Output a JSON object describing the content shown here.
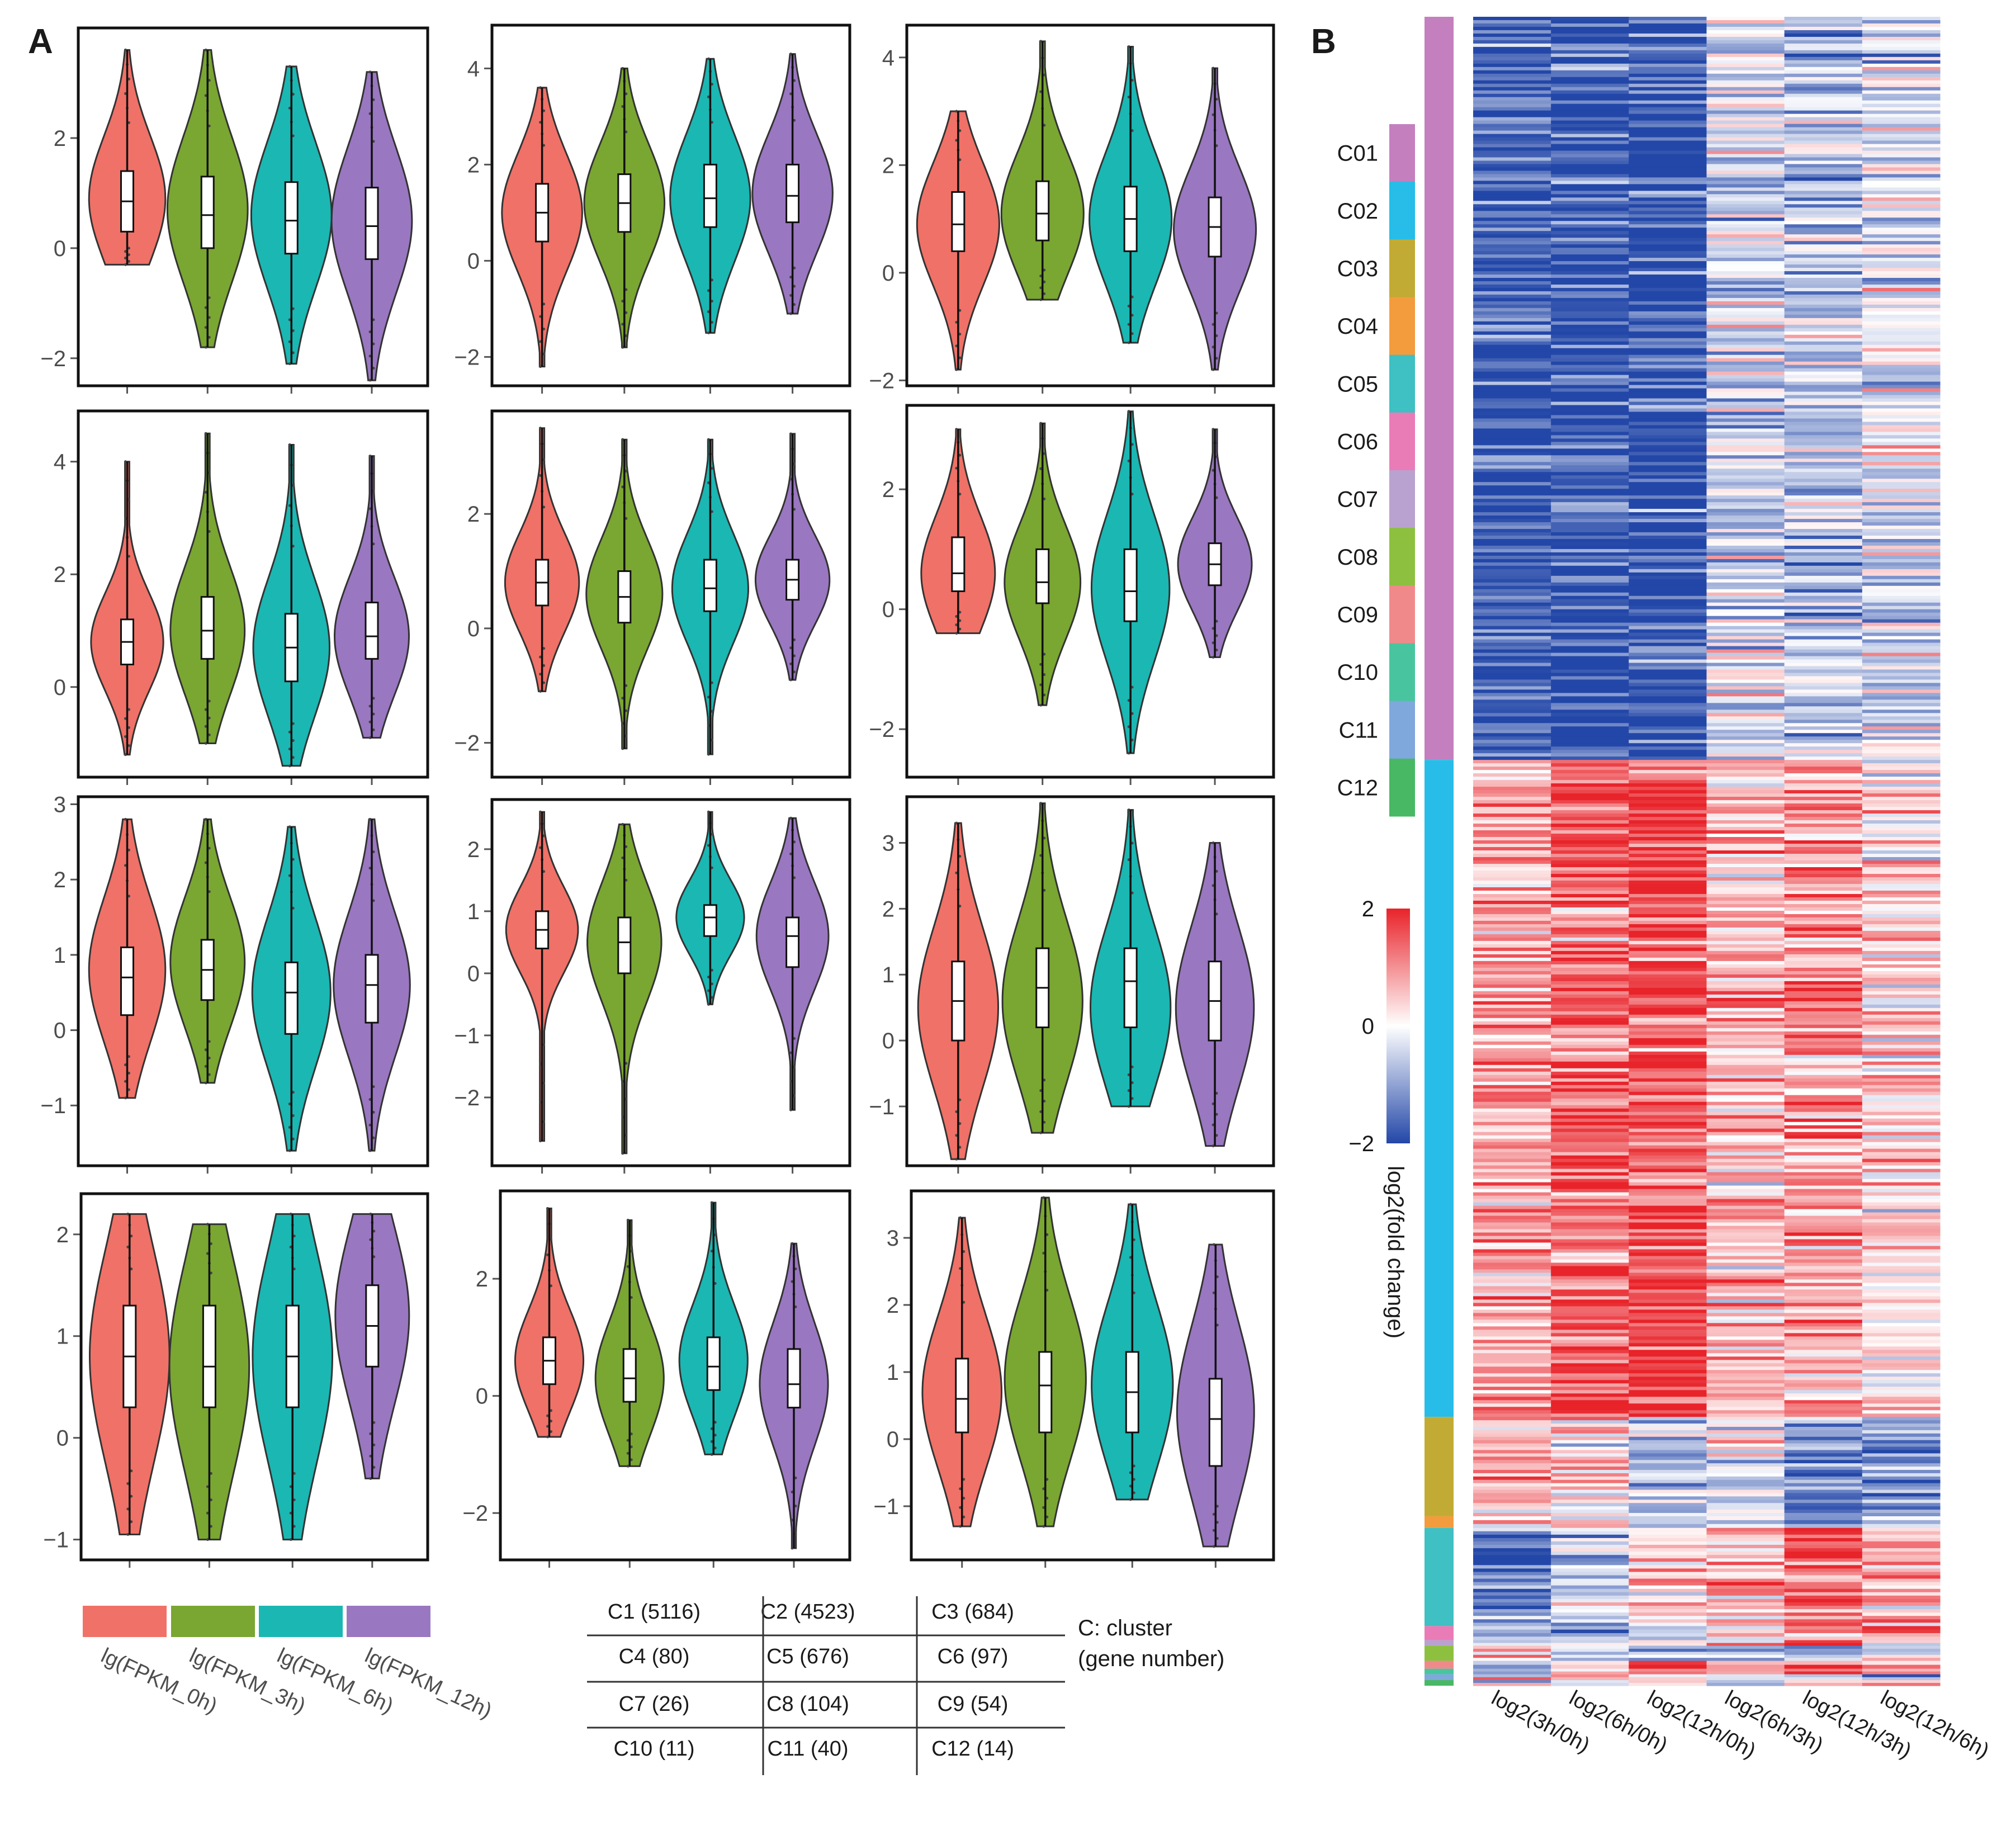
{
  "panel_labels": {
    "a": "A",
    "b": "B"
  },
  "colors": {
    "t0h": "#f07167",
    "t3h": "#7aa632",
    "t6h": "#1bb7b3",
    "t12h": "#9a77c1",
    "heat_low": "#2347a8",
    "heat_mid": "#ffffff",
    "heat_high": "#e8232a"
  },
  "group_colors": [
    "#f07167",
    "#7aa632",
    "#1bb7b3",
    "#9a77c1"
  ],
  "legend_a": {
    "labels": [
      "lg(FPKM_0h)",
      "lg(FPKM_3h)",
      "lg(FPKM_6h)",
      "lg(FPKM_12h)"
    ]
  },
  "cluster_table": {
    "cells": [
      [
        "C1 (5116)",
        "C2 (4523)",
        "C3 (684)"
      ],
      [
        "C4 (80)",
        "C5 (676)",
        "C6 (97)"
      ],
      [
        "C7 (26)",
        "C8 (104)",
        "C9 (54)"
      ],
      [
        "C10 (11)",
        "C11 (40)",
        "C12 (14)"
      ]
    ],
    "note_line1": "C: cluster",
    "note_line2": "(gene number)"
  },
  "chart_data": [
    {
      "type": "violin",
      "panel": "A",
      "cluster": "C1",
      "groups": [
        "lg(FPKM_0h)",
        "lg(FPKM_3h)",
        "lg(FPKM_6h)",
        "lg(FPKM_12h)"
      ],
      "ylim": [
        -2.5,
        4
      ],
      "yticks": [
        "2",
        "0",
        "−2"
      ],
      "ytick_values": [
        2,
        0,
        -2
      ],
      "violins": [
        {
          "min": -0.3,
          "q1": 0.3,
          "median": 0.85,
          "q3": 1.4,
          "max": 3.6,
          "mode": 0.9,
          "spread": 0.8
        },
        {
          "min": -1.8,
          "q1": 0.0,
          "median": 0.6,
          "q3": 1.3,
          "max": 3.6,
          "mode": 0.7,
          "spread": 1.0
        },
        {
          "min": -2.1,
          "q1": -0.1,
          "median": 0.5,
          "q3": 1.2,
          "max": 3.3,
          "mode": 0.6,
          "spread": 1.0
        },
        {
          "min": -2.4,
          "q1": -0.2,
          "median": 0.4,
          "q3": 1.1,
          "max": 3.2,
          "mode": 0.5,
          "spread": 1.05
        }
      ]
    },
    {
      "type": "violin",
      "panel": "A",
      "cluster": "C2",
      "groups": [
        "lg(FPKM_0h)",
        "lg(FPKM_3h)",
        "lg(FPKM_6h)",
        "lg(FPKM_12h)"
      ],
      "ylim": [
        -2.6,
        4.9
      ],
      "yticks": [
        "4",
        "2",
        "0",
        "−2"
      ],
      "ytick_values": [
        4,
        2,
        0,
        -2
      ],
      "violins": [
        {
          "min": -2.2,
          "q1": 0.4,
          "median": 1.0,
          "q3": 1.6,
          "max": 3.6,
          "mode": 1.0,
          "spread": 0.85
        },
        {
          "min": -1.8,
          "q1": 0.6,
          "median": 1.2,
          "q3": 1.8,
          "max": 4.0,
          "mode": 1.2,
          "spread": 0.85
        },
        {
          "min": -1.5,
          "q1": 0.7,
          "median": 1.3,
          "q3": 2.0,
          "max": 4.2,
          "mode": 1.3,
          "spread": 0.85
        },
        {
          "min": -1.1,
          "q1": 0.8,
          "median": 1.35,
          "q3": 2.0,
          "max": 4.3,
          "mode": 1.4,
          "spread": 0.85
        }
      ]
    },
    {
      "type": "violin",
      "panel": "A",
      "cluster": "C3",
      "groups": [
        "lg(FPKM_0h)",
        "lg(FPKM_3h)",
        "lg(FPKM_6h)",
        "lg(FPKM_12h)"
      ],
      "ylim": [
        -2.1,
        4.6
      ],
      "yticks": [
        "4",
        "2",
        "0",
        "−2"
      ],
      "ytick_values": [
        4,
        2,
        0,
        -2
      ],
      "violins": [
        {
          "min": -1.8,
          "q1": 0.4,
          "median": 0.9,
          "q3": 1.5,
          "max": 3.0,
          "mode": 0.9,
          "spread": 0.85
        },
        {
          "min": -0.5,
          "q1": 0.6,
          "median": 1.1,
          "q3": 1.7,
          "max": 4.3,
          "mode": 1.1,
          "spread": 0.85
        },
        {
          "min": -1.3,
          "q1": 0.4,
          "median": 1.0,
          "q3": 1.6,
          "max": 4.2,
          "mode": 1.0,
          "spread": 0.85
        },
        {
          "min": -1.8,
          "q1": 0.3,
          "median": 0.85,
          "q3": 1.4,
          "max": 3.8,
          "mode": 0.8,
          "spread": 0.85
        }
      ]
    },
    {
      "type": "violin",
      "panel": "A",
      "cluster": "C4",
      "groups": [
        "lg(FPKM_0h)",
        "lg(FPKM_3h)",
        "lg(FPKM_6h)",
        "lg(FPKM_12h)"
      ],
      "ylim": [
        -1.6,
        4.9
      ],
      "yticks": [
        "4",
        "2",
        "0"
      ],
      "ytick_values": [
        4,
        2,
        0
      ],
      "violins": [
        {
          "min": -1.2,
          "q1": 0.4,
          "median": 0.8,
          "q3": 1.2,
          "max": 4.0,
          "mode": 0.8,
          "spread": 0.7
        },
        {
          "min": -1.0,
          "q1": 0.5,
          "median": 1.0,
          "q3": 1.6,
          "max": 4.5,
          "mode": 1.0,
          "spread": 0.75
        },
        {
          "min": -1.4,
          "q1": 0.1,
          "median": 0.7,
          "q3": 1.3,
          "max": 4.3,
          "mode": 0.7,
          "spread": 0.8
        },
        {
          "min": -0.9,
          "q1": 0.5,
          "median": 0.9,
          "q3": 1.5,
          "max": 4.1,
          "mode": 0.9,
          "spread": 0.75
        }
      ]
    },
    {
      "type": "violin",
      "panel": "A",
      "cluster": "C5",
      "groups": [
        "lg(FPKM_0h)",
        "lg(FPKM_3h)",
        "lg(FPKM_6h)",
        "lg(FPKM_12h)"
      ],
      "ylim": [
        -2.6,
        3.8
      ],
      "yticks": [
        "2",
        "0",
        "−2"
      ],
      "ytick_values": [
        2,
        0,
        -2
      ],
      "violins": [
        {
          "min": -1.1,
          "q1": 0.4,
          "median": 0.8,
          "q3": 1.2,
          "max": 3.5,
          "mode": 0.8,
          "spread": 0.7
        },
        {
          "min": -2.1,
          "q1": 0.1,
          "median": 0.55,
          "q3": 1.0,
          "max": 3.3,
          "mode": 0.6,
          "spread": 0.75
        },
        {
          "min": -2.2,
          "q1": 0.3,
          "median": 0.7,
          "q3": 1.2,
          "max": 3.3,
          "mode": 0.7,
          "spread": 0.75
        },
        {
          "min": -0.9,
          "q1": 0.5,
          "median": 0.85,
          "q3": 1.2,
          "max": 3.4,
          "mode": 0.85,
          "spread": 0.7
        }
      ]
    },
    {
      "type": "violin",
      "panel": "A",
      "cluster": "C6",
      "groups": [
        "lg(FPKM_0h)",
        "lg(FPKM_3h)",
        "lg(FPKM_6h)",
        "lg(FPKM_12h)"
      ],
      "ylim": [
        -2.8,
        3.4
      ],
      "yticks": [
        "2",
        "0",
        "−2"
      ],
      "ytick_values": [
        2,
        0,
        -2
      ],
      "violins": [
        {
          "min": -0.4,
          "q1": 0.3,
          "median": 0.6,
          "q3": 1.2,
          "max": 3.0,
          "mode": 0.6,
          "spread": 0.65
        },
        {
          "min": -1.6,
          "q1": 0.1,
          "median": 0.45,
          "q3": 1.0,
          "max": 3.1,
          "mode": 0.45,
          "spread": 0.7
        },
        {
          "min": -2.4,
          "q1": -0.2,
          "median": 0.3,
          "q3": 1.0,
          "max": 3.3,
          "mode": 0.35,
          "spread": 0.75
        },
        {
          "min": -0.8,
          "q1": 0.4,
          "median": 0.75,
          "q3": 1.1,
          "max": 3.0,
          "mode": 0.75,
          "spread": 0.65
        }
      ]
    },
    {
      "type": "violin",
      "panel": "A",
      "cluster": "C7",
      "groups": [
        "lg(FPKM_0h)",
        "lg(FPKM_3h)",
        "lg(FPKM_6h)",
        "lg(FPKM_12h)"
      ],
      "ylim": [
        -1.8,
        3.1
      ],
      "yticks": [
        "3",
        "2",
        "1",
        "0",
        "−1"
      ],
      "ytick_values": [
        3,
        2,
        1,
        0,
        -1
      ],
      "violins": [
        {
          "min": -0.9,
          "q1": 0.2,
          "median": 0.7,
          "q3": 1.1,
          "max": 2.8,
          "mode": 0.8,
          "spread": 0.8
        },
        {
          "min": -0.7,
          "q1": 0.4,
          "median": 0.8,
          "q3": 1.2,
          "max": 2.8,
          "mode": 0.9,
          "spread": 0.75
        },
        {
          "min": -1.6,
          "q1": -0.05,
          "median": 0.5,
          "q3": 0.9,
          "max": 2.7,
          "mode": 0.5,
          "spread": 0.85
        },
        {
          "min": -1.6,
          "q1": 0.1,
          "median": 0.6,
          "q3": 1.0,
          "max": 2.8,
          "mode": 0.6,
          "spread": 0.8
        }
      ]
    },
    {
      "type": "violin",
      "panel": "A",
      "cluster": "C8",
      "groups": [
        "lg(FPKM_0h)",
        "lg(FPKM_3h)",
        "lg(FPKM_6h)",
        "lg(FPKM_12h)"
      ],
      "ylim": [
        -3.1,
        2.8
      ],
      "yticks": [
        "2",
        "1",
        "0",
        "−1",
        "−2"
      ],
      "ytick_values": [
        2,
        1,
        0,
        -1,
        -2
      ],
      "violins": [
        {
          "min": -2.7,
          "q1": 0.4,
          "median": 0.7,
          "q3": 1.0,
          "max": 2.6,
          "mode": 0.7,
          "spread": 0.65
        },
        {
          "min": -2.9,
          "q1": 0.0,
          "median": 0.5,
          "q3": 0.9,
          "max": 2.4,
          "mode": 0.5,
          "spread": 0.7
        },
        {
          "min": -0.5,
          "q1": 0.6,
          "median": 0.9,
          "q3": 1.1,
          "max": 2.6,
          "mode": 0.9,
          "spread": 0.55
        },
        {
          "min": -2.2,
          "q1": 0.1,
          "median": 0.6,
          "q3": 0.9,
          "max": 2.5,
          "mode": 0.6,
          "spread": 0.65
        }
      ]
    },
    {
      "type": "violin",
      "panel": "A",
      "cluster": "C9",
      "groups": [
        "lg(FPKM_0h)",
        "lg(FPKM_3h)",
        "lg(FPKM_6h)",
        "lg(FPKM_12h)"
      ],
      "ylim": [
        -1.9,
        3.7
      ],
      "yticks": [
        "3",
        "2",
        "1",
        "0",
        "−1"
      ],
      "ytick_values": [
        3,
        2,
        1,
        0,
        -1
      ],
      "violins": [
        {
          "min": -1.8,
          "q1": 0.0,
          "median": 0.6,
          "q3": 1.2,
          "max": 3.3,
          "mode": 0.5,
          "spread": 0.8
        },
        {
          "min": -1.4,
          "q1": 0.2,
          "median": 0.8,
          "q3": 1.4,
          "max": 3.6,
          "mode": 0.6,
          "spread": 0.8
        },
        {
          "min": -1.0,
          "q1": 0.2,
          "median": 0.9,
          "q3": 1.4,
          "max": 3.5,
          "mode": 0.5,
          "spread": 0.8
        },
        {
          "min": -1.6,
          "q1": 0.0,
          "median": 0.6,
          "q3": 1.2,
          "max": 3.0,
          "mode": 0.5,
          "spread": 0.75
        }
      ]
    },
    {
      "type": "violin",
      "panel": "A",
      "cluster": "C10",
      "groups": [
        "lg(FPKM_0h)",
        "lg(FPKM_3h)",
        "lg(FPKM_6h)",
        "lg(FPKM_12h)"
      ],
      "ylim": [
        -1.2,
        2.4
      ],
      "yticks": [
        "2",
        "1",
        "0",
        "−1"
      ],
      "ytick_values": [
        2,
        1,
        0,
        -1
      ],
      "violins": [
        {
          "min": -0.95,
          "q1": 0.3,
          "median": 0.8,
          "q3": 1.3,
          "max": 2.2,
          "mode": 0.8,
          "spread": 0.9
        },
        {
          "min": -1.0,
          "q1": 0.3,
          "median": 0.7,
          "q3": 1.3,
          "max": 2.1,
          "mode": 0.7,
          "spread": 0.9
        },
        {
          "min": -1.0,
          "q1": 0.3,
          "median": 0.8,
          "q3": 1.3,
          "max": 2.2,
          "mode": 0.8,
          "spread": 0.9
        },
        {
          "min": -0.4,
          "q1": 0.7,
          "median": 1.1,
          "q3": 1.5,
          "max": 2.2,
          "mode": 1.2,
          "spread": 0.75
        }
      ]
    },
    {
      "type": "violin",
      "panel": "A",
      "cluster": "C11",
      "groups": [
        "lg(FPKM_0h)",
        "lg(FPKM_3h)",
        "lg(FPKM_6h)",
        "lg(FPKM_12h)"
      ],
      "ylim": [
        -2.8,
        3.5
      ],
      "yticks": [
        "2",
        "0",
        "−2"
      ],
      "ytick_values": [
        2,
        0,
        -2
      ],
      "violins": [
        {
          "min": -0.7,
          "q1": 0.2,
          "median": 0.6,
          "q3": 1.0,
          "max": 3.2,
          "mode": 0.6,
          "spread": 0.6
        },
        {
          "min": -1.2,
          "q1": -0.1,
          "median": 0.3,
          "q3": 0.8,
          "max": 3.0,
          "mode": 0.3,
          "spread": 0.6
        },
        {
          "min": -1.0,
          "q1": 0.1,
          "median": 0.5,
          "q3": 1.0,
          "max": 3.3,
          "mode": 0.6,
          "spread": 0.6
        },
        {
          "min": -2.6,
          "q1": -0.2,
          "median": 0.2,
          "q3": 0.8,
          "max": 2.6,
          "mode": 0.2,
          "spread": 0.6
        }
      ]
    },
    {
      "type": "violin",
      "panel": "A",
      "cluster": "C12",
      "groups": [
        "lg(FPKM_0h)",
        "lg(FPKM_3h)",
        "lg(FPKM_6h)",
        "lg(FPKM_12h)"
      ],
      "ylim": [
        -1.8,
        3.7
      ],
      "yticks": [
        "3",
        "2",
        "1",
        "0",
        "−1"
      ],
      "ytick_values": [
        3,
        2,
        1,
        0,
        -1
      ],
      "violins": [
        {
          "min": -1.3,
          "q1": 0.1,
          "median": 0.6,
          "q3": 1.2,
          "max": 3.3,
          "mode": 0.7,
          "spread": 0.8
        },
        {
          "min": -1.3,
          "q1": 0.1,
          "median": 0.8,
          "q3": 1.3,
          "max": 3.6,
          "mode": 0.9,
          "spread": 0.85
        },
        {
          "min": -0.9,
          "q1": 0.1,
          "median": 0.7,
          "q3": 1.3,
          "max": 3.5,
          "mode": 0.8,
          "spread": 0.85
        },
        {
          "min": -1.6,
          "q1": -0.4,
          "median": 0.3,
          "q3": 0.9,
          "max": 2.9,
          "mode": 0.4,
          "spread": 0.75
        }
      ]
    },
    {
      "type": "heatmap",
      "panel": "B",
      "columns": [
        "log2(3h/0h)",
        "log2(6h/0h)",
        "log2(12h/0h)",
        "log2(6h/3h)",
        "log2(12h/3h)",
        "log2(12h/6h)"
      ],
      "colorbar": {
        "min": -2,
        "max": 2,
        "ticks": [
          "2",
          "0",
          "−2"
        ],
        "tick_values": [
          2,
          0,
          -2
        ],
        "label": "log2(fold change)"
      },
      "clusters": [
        {
          "name": "C01",
          "genes": 5116,
          "color": "#c47fbe",
          "mean": [
            -1.8,
            -1.9,
            -2.0,
            -0.4,
            -0.6,
            -0.3
          ]
        },
        {
          "name": "C02",
          "genes": 4523,
          "color": "#27bde8",
          "mean": [
            0.8,
            1.4,
            1.6,
            0.6,
            0.9,
            0.3
          ]
        },
        {
          "name": "C03",
          "genes": 684,
          "color": "#c2ab34",
          "mean": [
            0.6,
            0.3,
            -0.5,
            -0.3,
            -1.2,
            -0.9
          ]
        },
        {
          "name": "C04",
          "genes": 80,
          "color": "#f39c3e",
          "mean": [
            0.3,
            0.0,
            -0.4,
            -0.3,
            -0.7,
            -0.4
          ]
        },
        {
          "name": "C05",
          "genes": 676,
          "color": "#3fc0c2",
          "mean": [
            -1.3,
            -0.6,
            0.4,
            0.7,
            1.4,
            0.8
          ]
        },
        {
          "name": "C06",
          "genes": 97,
          "color": "#e97cb7",
          "mean": [
            -0.8,
            -1.2,
            -0.3,
            -0.4,
            0.7,
            0.9
          ]
        },
        {
          "name": "C07",
          "genes": 26,
          "color": "#b9a2cf",
          "mean": [
            -0.6,
            -0.4,
            0.2,
            0.2,
            0.8,
            0.6
          ]
        },
        {
          "name": "C08",
          "genes": 104,
          "color": "#8dc03f",
          "mean": [
            0.5,
            -0.6,
            -0.7,
            -1.0,
            -1.1,
            -0.2
          ]
        },
        {
          "name": "C09",
          "genes": 54,
          "color": "#f08a8a",
          "mean": [
            -0.3,
            0.6,
            0.9,
            0.9,
            1.2,
            0.4
          ]
        },
        {
          "name": "C10",
          "genes": 11,
          "color": "#48c59e",
          "mean": [
            -0.9,
            0.3,
            0.8,
            1.2,
            1.6,
            0.5
          ]
        },
        {
          "name": "C11",
          "genes": 40,
          "color": "#7fa8dc",
          "mean": [
            0.4,
            0.8,
            -0.2,
            0.4,
            -0.6,
            -1.0
          ]
        },
        {
          "name": "C12",
          "genes": 14,
          "color": "#49b865",
          "mean": [
            -0.4,
            -0.8,
            0.6,
            -0.4,
            1.0,
            1.3
          ]
        }
      ]
    }
  ]
}
